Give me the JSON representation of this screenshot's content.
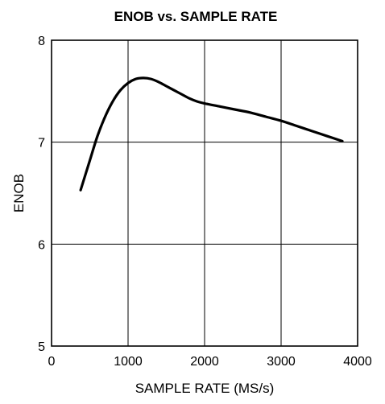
{
  "chart_data": {
    "type": "line",
    "title": "ENOB vs. SAMPLE RATE",
    "xlabel": "SAMPLE RATE (MS/s)",
    "ylabel": "ENOB",
    "xlim": [
      0,
      4000
    ],
    "ylim": [
      5,
      8
    ],
    "xticks": [
      0,
      1000,
      2000,
      3000,
      4000
    ],
    "yticks": [
      5,
      6,
      7,
      8
    ],
    "grid": true,
    "series": [
      {
        "x": [
          380,
          500,
          600,
          700,
          800,
          900,
          1000,
          1100,
          1200,
          1300,
          1400,
          1500,
          1600,
          1700,
          1800,
          1900,
          2000,
          2200,
          2400,
          2600,
          2800,
          3000,
          3200,
          3400,
          3600,
          3800
        ],
        "y": [
          6.53,
          6.82,
          7.06,
          7.25,
          7.4,
          7.51,
          7.58,
          7.62,
          7.63,
          7.62,
          7.59,
          7.55,
          7.51,
          7.47,
          7.43,
          7.4,
          7.38,
          7.35,
          7.32,
          7.29,
          7.25,
          7.21,
          7.16,
          7.11,
          7.06,
          7.01
        ],
        "color": "#000000"
      }
    ]
  }
}
